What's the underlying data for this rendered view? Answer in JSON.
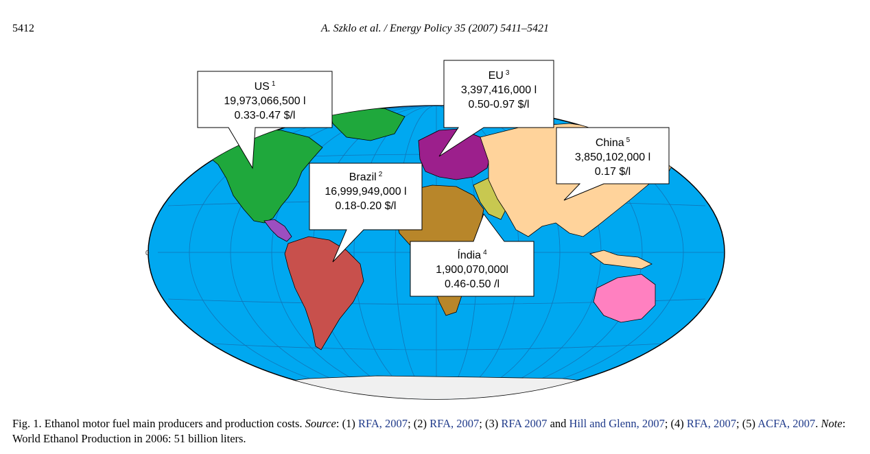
{
  "header": {
    "page_number": "5412",
    "running_head": "A. Szklo et al. / Energy Policy 35 (2007) 5411–5421"
  },
  "map": {
    "colors": {
      "ocean": "#00a8f0",
      "us": "#1fa83c",
      "brazil": "#c8504c",
      "africa": "#b8862a",
      "eu": "#9c1f8c",
      "asia": "#ffd39b",
      "middle_east": "#c8c850",
      "australia": "#ff80c0",
      "central_america": "#9c4fc0",
      "antarctica": "#f0f0f0"
    },
    "axis_label": "0",
    "callouts": [
      {
        "id": "us",
        "name": "US",
        "ref": "1",
        "volume": "19,973,066,500 l",
        "cost": "0.33-0.47 $/l"
      },
      {
        "id": "eu",
        "name": "EU",
        "ref": "3",
        "volume": "3,397,416,000 l",
        "cost": "0.50-0.97 $/l"
      },
      {
        "id": "brazil",
        "name": "Brazil",
        "ref": "2",
        "volume": "16,999,949,000 l",
        "cost": "0.18-0.20 $/l"
      },
      {
        "id": "china",
        "name": "China",
        "ref": "5",
        "volume": "3,850,102,000 l",
        "cost": "0.17 $/l"
      },
      {
        "id": "india",
        "name": "Índia",
        "ref": "4",
        "volume": "1,900,070,000l",
        "cost": "0.46-0.50 /l"
      }
    ]
  },
  "caption": {
    "lead": "Fig. 1. Ethanol motor fuel main producers and production costs. ",
    "source_label": "Source",
    "s1": ": (1) ",
    "ref1": "RFA, 2007",
    "s2": "; (2) ",
    "ref2": "RFA, 2007",
    "s3": "; (3) ",
    "ref3": "RFA 2007",
    "s4": " and ",
    "ref4": "Hill and Glenn, 2007",
    "s5": "; (4) ",
    "ref5": "RFA, 2007",
    "s6": "; (5) ",
    "ref6": "ACFA, 2007",
    "s7": ". ",
    "note_label": "Note",
    "s8": ": World Ethanol Production in 2006: 51 billion liters."
  }
}
